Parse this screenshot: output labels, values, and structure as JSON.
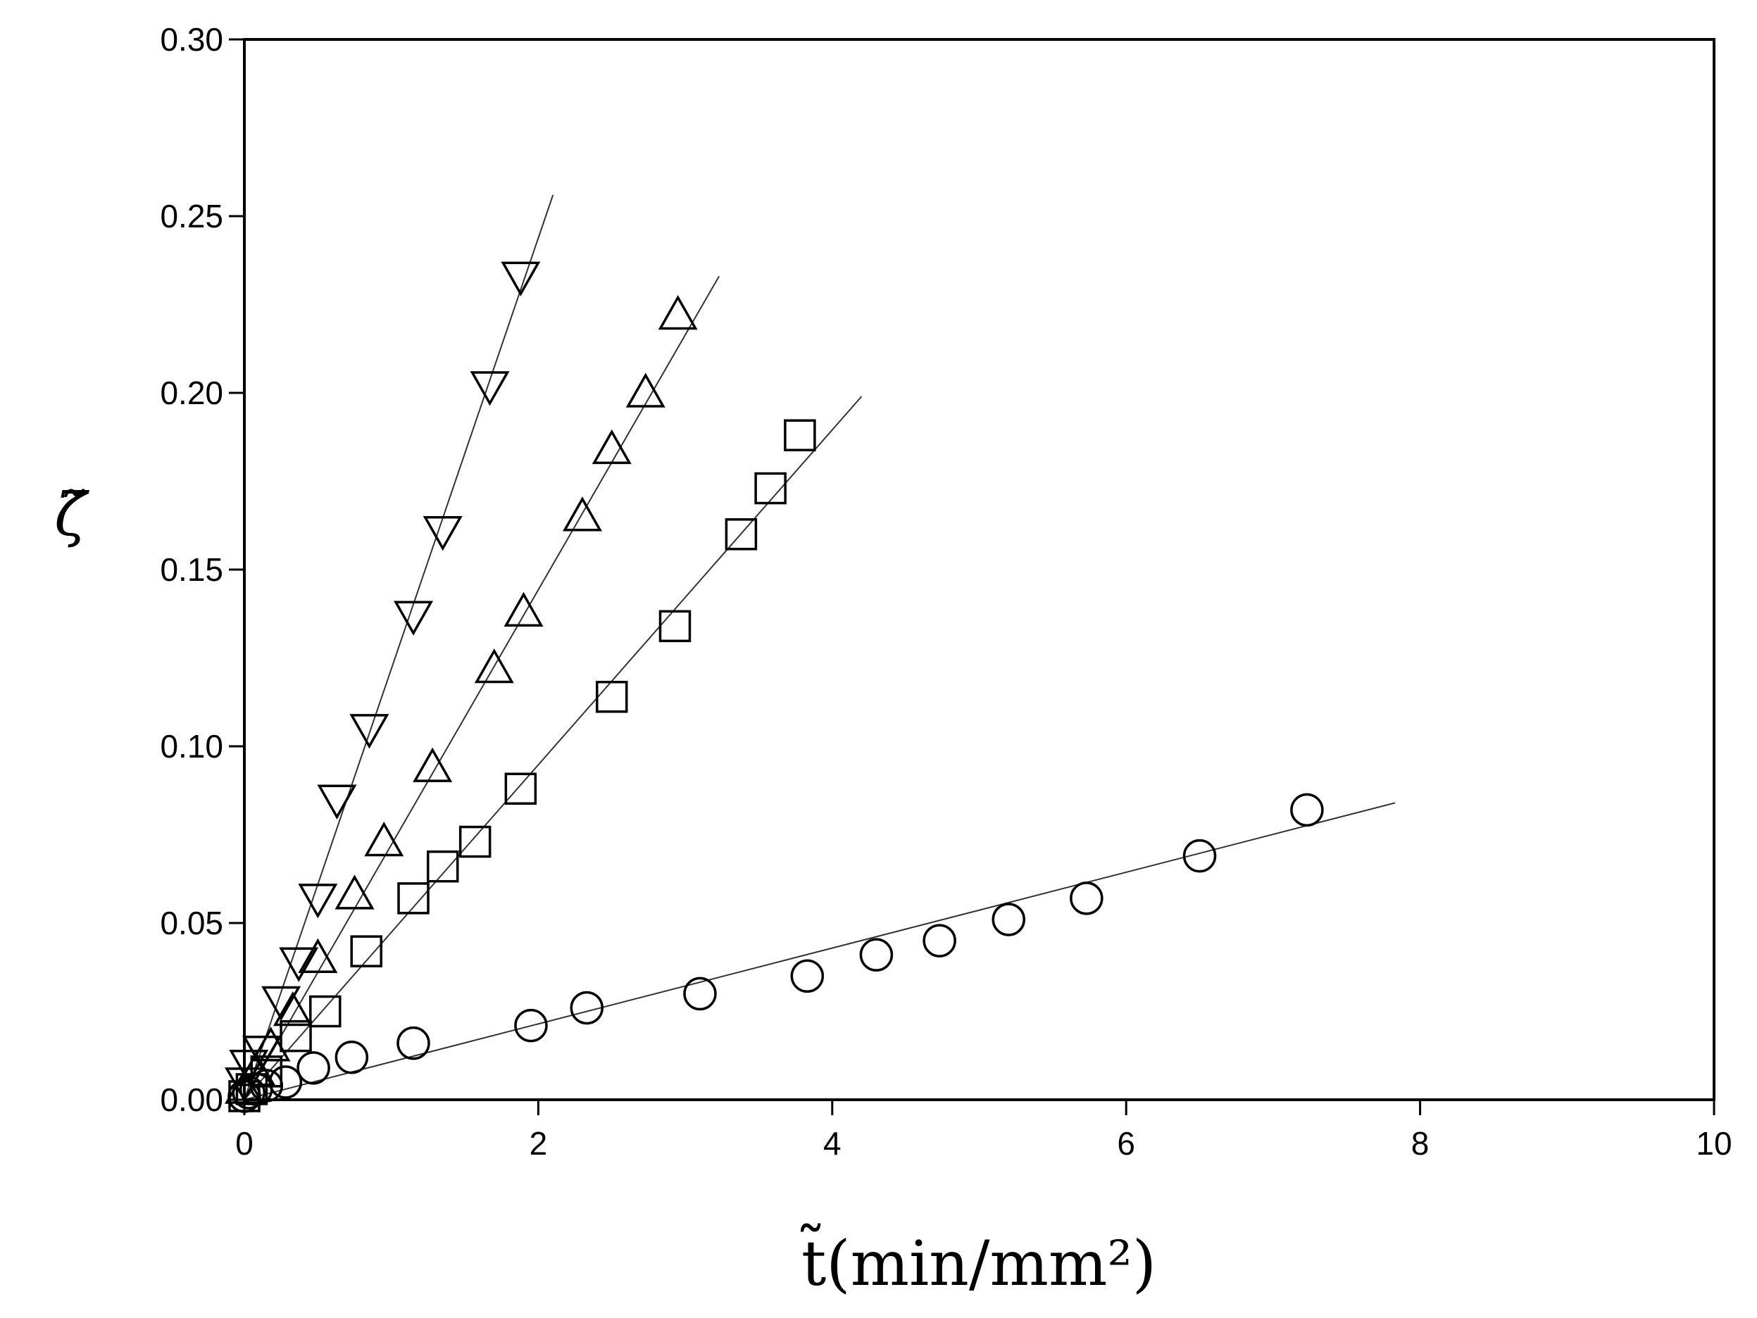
{
  "chart_data": {
    "type": "scatter",
    "xlabel": "t̃(min/mm²)",
    "ylabel": "ζ̃",
    "xlim": [
      0,
      10
    ],
    "ylim": [
      0,
      0.3
    ],
    "xticks": [
      "0",
      "2",
      "4",
      "6",
      "8",
      "10"
    ],
    "yticks": [
      "0.00",
      "0.05",
      "0.10",
      "0.15",
      "0.20",
      "0.25",
      "0.30"
    ],
    "grid": false,
    "legend": "none",
    "series": [
      {
        "marker": "circle",
        "x": [
          0.0,
          0.03,
          0.08,
          0.15,
          0.28,
          0.47,
          0.73,
          1.15,
          1.95,
          2.33,
          3.1,
          3.83,
          4.3,
          4.73,
          5.2,
          5.73,
          6.5,
          7.23
        ],
        "y": [
          0.001,
          0.002,
          0.003,
          0.004,
          0.005,
          0.009,
          0.012,
          0.016,
          0.021,
          0.026,
          0.03,
          0.035,
          0.041,
          0.045,
          0.051,
          0.057,
          0.069,
          0.082
        ],
        "fit_line": {
          "x": [
            0,
            7.83
          ],
          "y": [
            0,
            0.084
          ]
        }
      },
      {
        "marker": "square",
        "x": [
          0.0,
          0.05,
          0.15,
          0.35,
          0.55,
          0.83,
          1.15,
          1.35,
          1.57,
          1.88,
          2.5,
          2.93,
          3.38,
          3.58,
          3.78
        ],
        "y": [
          0.001,
          0.003,
          0.008,
          0.018,
          0.025,
          0.042,
          0.057,
          0.066,
          0.073,
          0.088,
          0.114,
          0.134,
          0.16,
          0.173,
          0.188
        ],
        "fit_line": {
          "x": [
            0,
            4.2
          ],
          "y": [
            0,
            0.199
          ]
        }
      },
      {
        "marker": "triangle-up",
        "x": [
          0.0,
          0.08,
          0.18,
          0.33,
          0.5,
          0.75,
          0.95,
          1.28,
          1.7,
          1.9,
          2.3,
          2.5,
          2.73,
          2.95
        ],
        "y": [
          0.003,
          0.008,
          0.015,
          0.025,
          0.04,
          0.058,
          0.073,
          0.094,
          0.122,
          0.138,
          0.165,
          0.184,
          0.2,
          0.222
        ],
        "fit_line": {
          "x": [
            0,
            3.23
          ],
          "y": [
            0,
            0.233
          ]
        }
      },
      {
        "marker": "triangle-down",
        "x": [
          0.0,
          0.03,
          0.12,
          0.25,
          0.37,
          0.5,
          0.63,
          0.85,
          1.15,
          1.35,
          1.67,
          1.88
        ],
        "y": [
          0.005,
          0.01,
          0.014,
          0.028,
          0.039,
          0.057,
          0.085,
          0.105,
          0.137,
          0.161,
          0.202,
          0.233
        ],
        "fit_line": {
          "x": [
            0,
            2.1
          ],
          "y": [
            0,
            0.256
          ]
        }
      }
    ]
  }
}
